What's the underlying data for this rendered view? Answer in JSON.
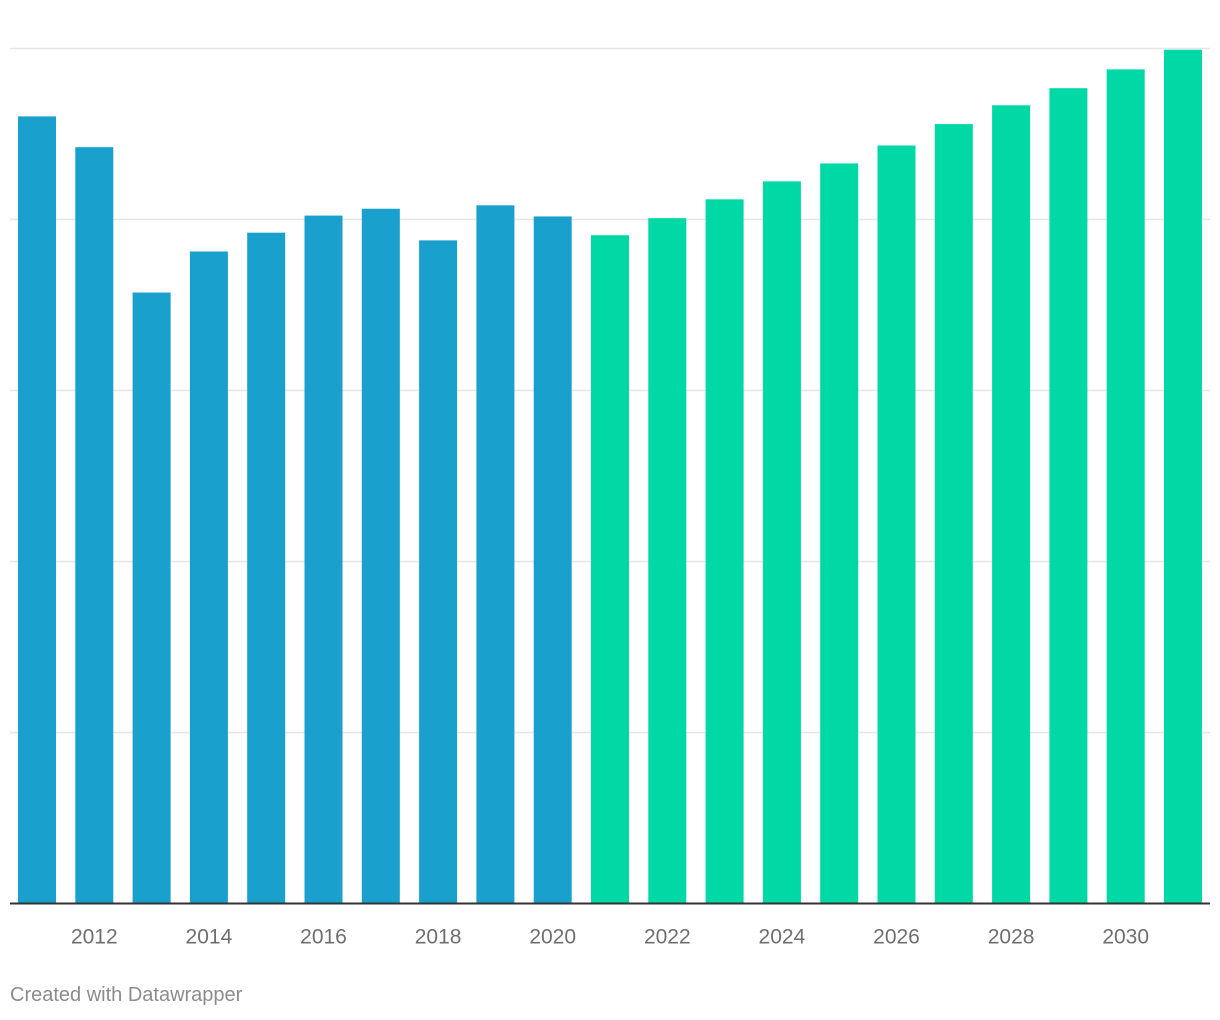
{
  "chart_data": {
    "type": "bar",
    "title": "",
    "xlabel": "",
    "ylabel": "",
    "categories": [
      "2011",
      "2012",
      "2013",
      "2014",
      "2015",
      "2016",
      "2017",
      "2018",
      "2019",
      "2020",
      "2021",
      "2022",
      "2023",
      "2024",
      "2025",
      "2026",
      "2027",
      "2028",
      "2029",
      "2030",
      "2031"
    ],
    "values": [
      920,
      884,
      714,
      762,
      784,
      804,
      812,
      775,
      816,
      803,
      781,
      801,
      823,
      844,
      865,
      886,
      911,
      933,
      953,
      975,
      998
    ],
    "series_colors": [
      "#1aa0cd",
      "#1aa0cd",
      "#1aa0cd",
      "#1aa0cd",
      "#1aa0cd",
      "#1aa0cd",
      "#1aa0cd",
      "#1aa0cd",
      "#1aa0cd",
      "#1aa0cd",
      "#00d9a5",
      "#00d9a5",
      "#00d9a5",
      "#00d9a5",
      "#00d9a5",
      "#00d9a5",
      "#00d9a5",
      "#00d9a5",
      "#00d9a5",
      "#00d9a5",
      "#00d9a5"
    ],
    "x_tick_labels": [
      "2012",
      "2014",
      "2016",
      "2018",
      "2020",
      "2022",
      "2024",
      "2026",
      "2028",
      "2030"
    ],
    "ylim": [
      0,
      1000
    ],
    "gridlines": [
      200,
      400,
      600,
      800,
      1000
    ],
    "grid": true,
    "legend": "none"
  },
  "colors": {
    "historical": "#1aa0cd",
    "forecast": "#00d9a5",
    "gridline": "#e6e6e6",
    "baseline": "#333333",
    "tick_text": "#6f6f6f",
    "credit_text": "#8c8c8c"
  },
  "footer": {
    "credit": "Created with Datawrapper"
  }
}
